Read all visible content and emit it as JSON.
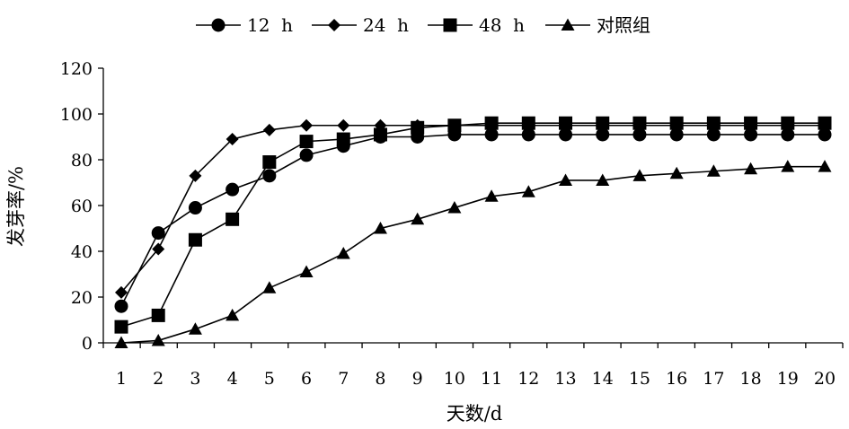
{
  "chart_data": {
    "type": "line",
    "title": "",
    "xlabel": "天数/d",
    "ylabel": "发芽率/%",
    "ylim": [
      0,
      120
    ],
    "yticks": [
      0,
      20,
      40,
      60,
      80,
      100,
      120
    ],
    "x": [
      1,
      2,
      3,
      4,
      5,
      6,
      7,
      8,
      9,
      10,
      11,
      12,
      13,
      14,
      15,
      16,
      17,
      18,
      19,
      20
    ],
    "grid": false,
    "legend_position": "top",
    "series": [
      {
        "name": "12  h",
        "marker": "circle",
        "values": [
          16,
          48,
          59,
          67,
          73,
          82,
          86,
          90,
          90,
          91,
          91,
          91,
          91,
          91,
          91,
          91,
          91,
          91,
          91,
          91
        ]
      },
      {
        "name": "24  h",
        "marker": "diamond",
        "values": [
          22,
          41,
          73,
          89,
          93,
          95,
          95,
          95,
          95,
          95,
          95,
          95,
          95,
          95,
          95,
          95,
          95,
          95,
          95,
          95
        ]
      },
      {
        "name": "48  h",
        "marker": "square",
        "values": [
          7,
          12,
          45,
          54,
          79,
          88,
          89,
          91,
          94,
          95,
          96,
          96,
          96,
          96,
          96,
          96,
          96,
          96,
          96,
          96
        ]
      },
      {
        "name": "对照组",
        "marker": "triangle",
        "values": [
          0,
          1,
          6,
          12,
          24,
          31,
          39,
          50,
          54,
          59,
          64,
          66,
          71,
          71,
          73,
          74,
          75,
          76,
          77,
          77
        ]
      }
    ]
  }
}
